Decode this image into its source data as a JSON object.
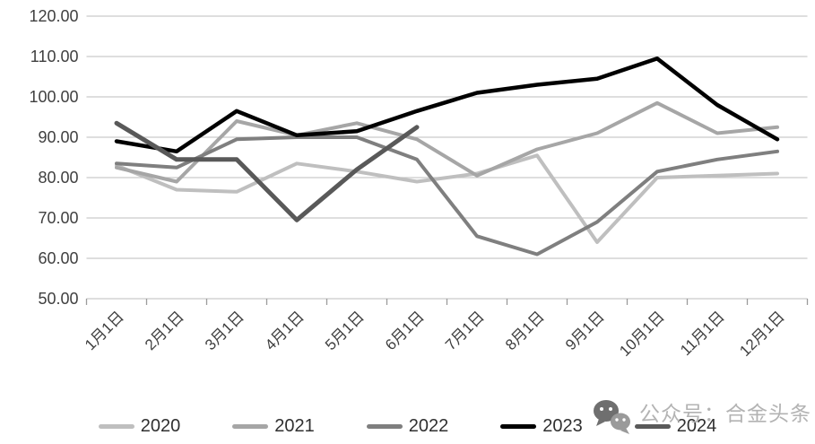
{
  "page": {
    "background": "#ffffff"
  },
  "watermark": {
    "text": "公众号：合金头条",
    "text_color": "#b3b3b3",
    "icon": "wechat-chat-bubbles",
    "icon_color_front": "#6f6f6f",
    "icon_color_back": "#9a9a9a"
  },
  "chart_data": {
    "type": "line",
    "title": "",
    "xlabel": "",
    "ylabel": "",
    "categories": [
      "1月1日",
      "2月1日",
      "3月1日",
      "4月1日",
      "5月1日",
      "6月1日",
      "7月1日",
      "8月1日",
      "9月1日",
      "10月1日",
      "11月1日",
      "12月1日"
    ],
    "series": [
      {
        "name": "2020",
        "color": "#bfbfbf",
        "values": [
          83,
          77,
          76.5,
          83.5,
          81.5,
          79,
          81,
          85.5,
          64,
          80,
          80.5,
          81
        ]
      },
      {
        "name": "2021",
        "color": "#a6a6a6",
        "values": [
          82.5,
          79,
          94,
          90.5,
          93.5,
          89.5,
          80.5,
          87,
          91,
          98.5,
          91,
          92.5
        ]
      },
      {
        "name": "2022",
        "color": "#7f7f7f",
        "values": [
          83.5,
          82.5,
          89.5,
          90,
          90,
          84.5,
          65.5,
          61,
          69,
          81.5,
          84.5,
          86.5
        ]
      },
      {
        "name": "2023",
        "color": "#000000",
        "values": [
          89,
          86.5,
          96.5,
          90.5,
          91.5,
          96.5,
          101,
          103,
          104.5,
          109.5,
          98,
          89.5
        ]
      },
      {
        "name": "2024",
        "color": "#595959",
        "values": [
          93.5,
          84.5,
          84.5,
          69.5,
          82,
          92.5
        ]
      }
    ],
    "ylim": [
      50,
      120
    ],
    "ytick_step": 10,
    "ytick_labels": [
      "120.00",
      "110.00",
      "100.00",
      "90.00",
      "80.00",
      "70.00",
      "60.00",
      "50.00"
    ],
    "grid": "horizontal",
    "gridline_color": "#c9c9c9",
    "axis_color": "#9b9b9b",
    "legend_position": "bottom"
  }
}
